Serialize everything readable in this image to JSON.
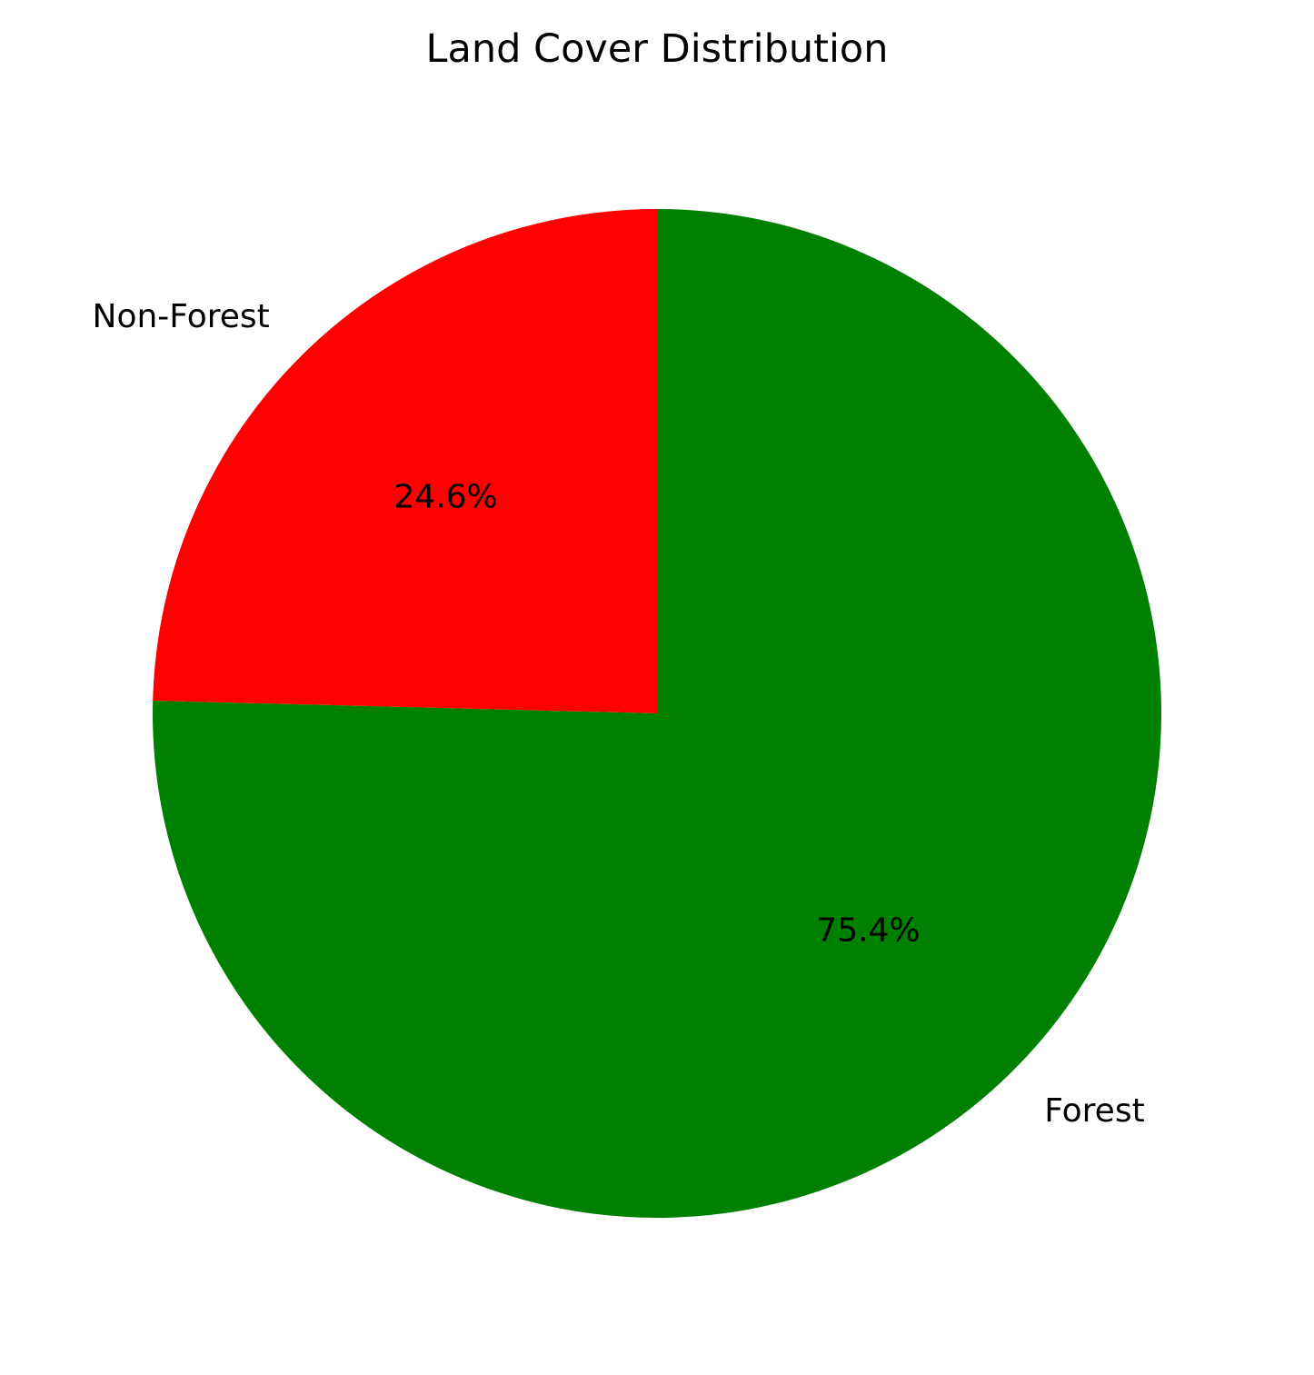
{
  "chart_data": {
    "type": "pie",
    "title": "Land Cover Distribution",
    "categories": [
      "Forest",
      "Non-Forest"
    ],
    "values": [
      75.4,
      24.6
    ],
    "percent_labels": [
      "75.4%",
      "24.6%"
    ],
    "colors": [
      "#008000",
      "#ff0000"
    ],
    "start_angle_deg": 90,
    "direction": "counterclockwise-from-top for Non-Forest; Forest fills remainder"
  }
}
